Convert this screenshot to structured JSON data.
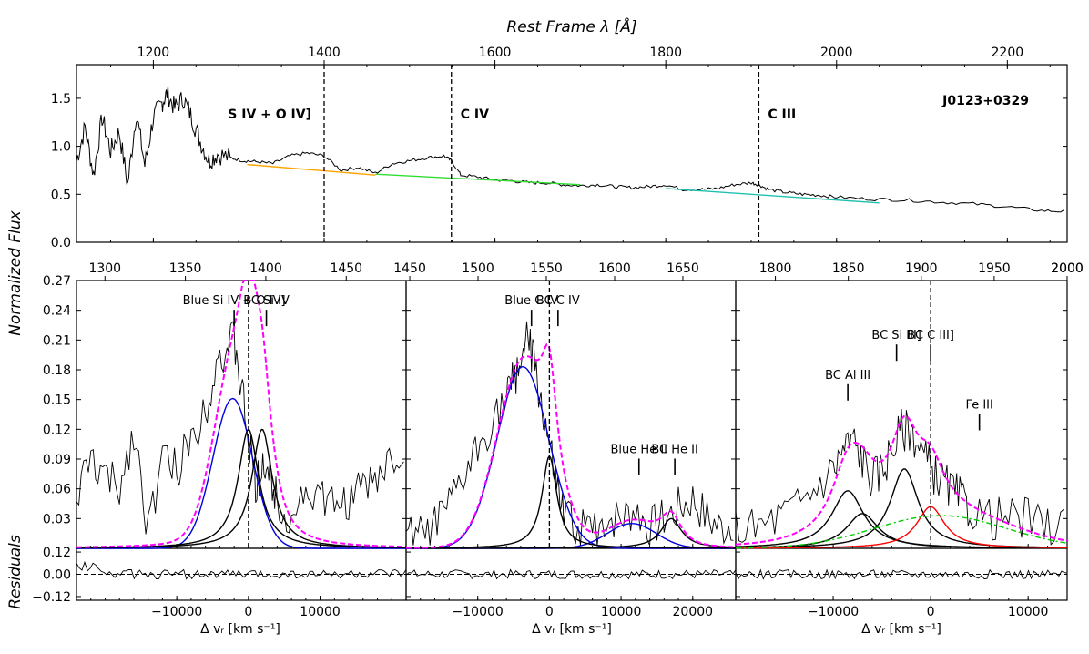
{
  "figure": {
    "top_xlabel": "Rest Frame λ [Å]",
    "ylabel": "Normalized Flux",
    "resid_ylabel": "Residuals",
    "bottom_xlabel": "Δ vᵣ [km s⁻¹]",
    "object_name": "J0123+0329"
  },
  "chart_data": [
    {
      "id": "overview",
      "type": "line",
      "title": "",
      "xlabel": "Rest Frame λ [Å]",
      "ylabel": "Normalized Flux",
      "xlim": [
        1110,
        2270
      ],
      "ylim": [
        0.0,
        1.85
      ],
      "xticks": [
        1200,
        1400,
        1600,
        1800,
        2000,
        2200
      ],
      "yticks": [
        0.0,
        0.5,
        1.0,
        1.5
      ],
      "ytick_labels": [
        "0.0",
        "0.5",
        "1.0",
        "1.5"
      ],
      "lines_labels": [
        {
          "text": "S IV + O IV]",
          "x": 1400
        },
        {
          "text": "C IV",
          "x": 1549
        },
        {
          "text": "C III",
          "x": 1909
        }
      ],
      "vlines": [
        1400,
        1549,
        1909
      ],
      "continuum_segments": [
        {
          "name": "continuum-1",
          "color": "#ffa500",
          "x": [
            1310,
            1460
          ],
          "y": [
            0.81,
            0.7
          ]
        },
        {
          "name": "continuum-2",
          "color": "#33dd33",
          "x": [
            1460,
            1700
          ],
          "y": [
            0.71,
            0.6
          ]
        },
        {
          "name": "continuum-3",
          "color": "#20c0b0",
          "x": [
            1800,
            2050
          ],
          "y": [
            0.56,
            0.41
          ]
        }
      ],
      "spectrum": {
        "x": [
          1110,
          1120,
          1130,
          1140,
          1150,
          1160,
          1170,
          1180,
          1190,
          1200,
          1210,
          1216,
          1225,
          1235,
          1245,
          1255,
          1265,
          1275,
          1290,
          1305,
          1320,
          1340,
          1360,
          1380,
          1400,
          1420,
          1440,
          1460,
          1480,
          1500,
          1520,
          1540,
          1549,
          1560,
          1580,
          1600,
          1620,
          1640,
          1660,
          1680,
          1700,
          1720,
          1740,
          1760,
          1780,
          1800,
          1820,
          1840,
          1860,
          1880,
          1900,
          1909,
          1920,
          1940,
          1960,
          1980,
          2000,
          2040,
          2080,
          2120,
          2160,
          2200,
          2240,
          2270
        ],
        "y": [
          0.85,
          1.2,
          0.7,
          1.3,
          0.95,
          1.15,
          0.6,
          1.35,
          0.8,
          1.3,
          1.45,
          1.55,
          1.4,
          1.5,
          1.3,
          1.05,
          0.85,
          0.92,
          0.88,
          0.85,
          0.84,
          0.82,
          0.9,
          0.93,
          0.9,
          0.75,
          0.78,
          0.72,
          0.82,
          0.85,
          0.88,
          0.9,
          0.85,
          0.7,
          0.68,
          0.65,
          0.64,
          0.62,
          0.62,
          0.6,
          0.59,
          0.6,
          0.58,
          0.57,
          0.58,
          0.6,
          0.55,
          0.55,
          0.56,
          0.6,
          0.62,
          0.6,
          0.55,
          0.52,
          0.5,
          0.49,
          0.47,
          0.45,
          0.44,
          0.42,
          0.4,
          0.37,
          0.33,
          0.32
        ]
      }
    },
    {
      "id": "siiv-panel",
      "type": "line",
      "title": "",
      "top_xlabel": "Rest Frame λ [Å]",
      "top_ticks": [
        1300,
        1350,
        1400,
        1450
      ],
      "top_range": [
        1282.3,
        1487.2
      ],
      "xlabel": "Δ vᵣ [km s⁻¹]",
      "ylabel": "Normalized Flux",
      "xlim": [
        -24000,
        22000
      ],
      "ylim": [
        0.0,
        0.27
      ],
      "xticks": [
        -10000,
        0,
        10000
      ],
      "xtick_labels": [
        "−10000",
        "0",
        "10000"
      ],
      "yticks": [
        0.03,
        0.06,
        0.09,
        0.12,
        0.15,
        0.18,
        0.21,
        0.24,
        0.27
      ],
      "ytick_labels": [
        "0.03",
        "0.06",
        "0.09",
        "0.12",
        "0.15",
        "0.18",
        "0.21",
        "0.24",
        "0.27"
      ],
      "labels": [
        {
          "text": "Blue Si IV + O IV]",
          "x": -2000,
          "y": 0.235
        },
        {
          "text": "BC Si IV",
          "x": 2500,
          "y": 0.235
        }
      ],
      "series": [
        {
          "name": "Blue Si IV + O IV] component",
          "color": "#0000dd",
          "kind": "gauss",
          "amp": 0.151,
          "center": -2200,
          "fwhm": 6500
        },
        {
          "name": "BC Si IV 1",
          "color": "#000000",
          "kind": "lorentz",
          "amp": 0.12,
          "center": 0,
          "fwhm": 3500
        },
        {
          "name": "BC Si IV 2",
          "color": "#000000",
          "kind": "lorentz",
          "amp": 0.12,
          "center": 1900,
          "fwhm": 3500
        },
        {
          "name": "model",
          "color": "#ff00ff",
          "kind": "model",
          "dashed": true
        }
      ],
      "observed": {
        "x": [
          -24000,
          -22000,
          -20000,
          -18000,
          -16000,
          -14000,
          -12000,
          -10000,
          -8000,
          -6000,
          -4500,
          -3000,
          -2000,
          -1000,
          0,
          1000,
          2000,
          3000,
          4000,
          6000,
          8000,
          10000,
          12000,
          14000,
          16000,
          18000,
          20000,
          22000
        ],
        "y": [
          0.05,
          0.09,
          0.07,
          0.06,
          0.12,
          0.02,
          0.09,
          0.08,
          0.11,
          0.14,
          0.19,
          0.2,
          0.21,
          0.16,
          0.11,
          0.06,
          0.09,
          0.07,
          0.05,
          0.03,
          0.06,
          0.05,
          0.04,
          0.05,
          0.06,
          0.07,
          0.09,
          0.1
        ]
      },
      "residual_ylim": [
        -0.14,
        0.14
      ],
      "residual_yticks": [
        -0.12,
        0.0,
        0.12
      ],
      "residual_ytick_labels": [
        "−0.12",
        "0.00",
        "0.12"
      ]
    },
    {
      "id": "civ-panel",
      "type": "line",
      "title": "",
      "top_xlabel": "Rest Frame λ [Å]",
      "top_ticks": [
        1450,
        1500,
        1550,
        1600,
        1650
      ],
      "top_range": [
        1447.3,
        1688.7
      ],
      "xlabel": "Δ vᵣ [km s⁻¹]",
      "ylabel": "Normalized Flux",
      "xlim": [
        -20000,
        26000
      ],
      "ylim": [
        0.0,
        0.27
      ],
      "xticks": [
        -10000,
        0,
        10000,
        20000
      ],
      "xtick_labels": [
        "−10000",
        "0",
        "10000",
        "20000"
      ],
      "labels": [
        {
          "text": "Blue C IV",
          "x": -2500,
          "y": 0.235
        },
        {
          "text": "BC C IV",
          "x": 1200,
          "y": 0.235
        },
        {
          "text": "Blue He II",
          "x": 12500,
          "y": 0.085
        },
        {
          "text": "BC He II",
          "x": 17500,
          "y": 0.085
        }
      ],
      "series": [
        {
          "name": "Blue C IV component",
          "color": "#0000dd",
          "kind": "gauss",
          "amp": 0.183,
          "center": -3700,
          "fwhm": 8500
        },
        {
          "name": "Blue He II component",
          "color": "#0000dd",
          "kind": "gauss",
          "amp": 0.025,
          "center": 11500,
          "fwhm": 8000
        },
        {
          "name": "BC C IV",
          "color": "#000000",
          "kind": "lorentz",
          "amp": 0.093,
          "center": 0,
          "fwhm": 2500
        },
        {
          "name": "BC He II",
          "color": "#000000",
          "kind": "lorentz",
          "amp": 0.03,
          "center": 17000,
          "fwhm": 3500
        },
        {
          "name": "model",
          "color": "#ff00ff",
          "kind": "model",
          "dashed": true
        }
      ],
      "observed": {
        "x": [
          -20000,
          -18000,
          -16000,
          -14000,
          -12000,
          -10000,
          -8000,
          -6000,
          -5000,
          -4000,
          -3000,
          -2000,
          -1000,
          0,
          1000,
          2000,
          4000,
          6000,
          8000,
          10000,
          12000,
          14000,
          16000,
          18000,
          20000,
          22000,
          24000,
          26000
        ],
        "y": [
          0.01,
          0.01,
          0.02,
          0.04,
          0.07,
          0.1,
          0.13,
          0.15,
          0.17,
          0.19,
          0.21,
          0.18,
          0.14,
          0.1,
          0.06,
          0.03,
          0.02,
          0.02,
          0.03,
          0.03,
          0.04,
          0.02,
          0.03,
          0.04,
          0.05,
          0.03,
          0.02,
          0.03
        ]
      },
      "residual_ylim": [
        -0.14,
        0.14
      ]
    },
    {
      "id": "ciii-panel",
      "type": "line",
      "title": "",
      "top_xlabel": "Rest Frame λ [Å]",
      "top_ticks": [
        1800,
        1850,
        1900,
        1950,
        2000
      ],
      "top_range": [
        1772.8,
        2000.0
      ],
      "xlabel": "Δ vᵣ [km s⁻¹]",
      "ylabel": "Normalized Flux",
      "xlim": [
        -20000,
        14000
      ],
      "ylim": [
        0.0,
        0.27
      ],
      "xticks": [
        -10000,
        0,
        10000
      ],
      "xtick_labels": [
        "−10000",
        "0",
        "10000"
      ],
      "labels": [
        {
          "text": "BC Si III]",
          "x": -3500,
          "y": 0.2
        },
        {
          "text": "BC C III]",
          "x": 0,
          "y": 0.2
        },
        {
          "text": "BC Al III",
          "x": -8500,
          "y": 0.16
        },
        {
          "text": "Fe III",
          "x": 5000,
          "y": 0.13
        }
      ],
      "series": [
        {
          "name": "BC Al III 1",
          "color": "#000000",
          "kind": "lorentz",
          "amp": 0.058,
          "center": -8500,
          "fwhm": 4000
        },
        {
          "name": "BC Al III 2",
          "color": "#000000",
          "kind": "lorentz",
          "amp": 0.035,
          "center": -7000,
          "fwhm": 4000
        },
        {
          "name": "BC Si III]",
          "color": "#000000",
          "kind": "lorentz",
          "amp": 0.08,
          "center": -2700,
          "fwhm": 3500
        },
        {
          "name": "BC C III]",
          "color": "#ff0000",
          "kind": "lorentz",
          "amp": 0.042,
          "center": 0,
          "fwhm": 3500
        },
        {
          "name": "Fe III",
          "color": "#00cc00",
          "kind": "gauss",
          "amp": 0.033,
          "center": 1000,
          "fwhm": 16000,
          "dashdot": true
        },
        {
          "name": "model",
          "color": "#ff00ff",
          "kind": "model",
          "dashed": true
        }
      ],
      "observed": {
        "x": [
          -20000,
          -18000,
          -16000,
          -14000,
          -12000,
          -10000,
          -9000,
          -8000,
          -7000,
          -6000,
          -5000,
          -4000,
          -3000,
          -2000,
          -1000,
          0,
          1000,
          2000,
          3000,
          4000,
          6000,
          8000,
          10000,
          12000,
          14000
        ],
        "y": [
          0.02,
          0.02,
          0.03,
          0.04,
          0.06,
          0.08,
          0.1,
          0.11,
          0.09,
          0.07,
          0.08,
          0.1,
          0.12,
          0.12,
          0.1,
          0.08,
          0.07,
          0.06,
          0.05,
          0.04,
          0.03,
          0.03,
          0.03,
          0.02,
          0.03
        ]
      },
      "residual_ylim": [
        -0.14,
        0.14
      ]
    }
  ]
}
